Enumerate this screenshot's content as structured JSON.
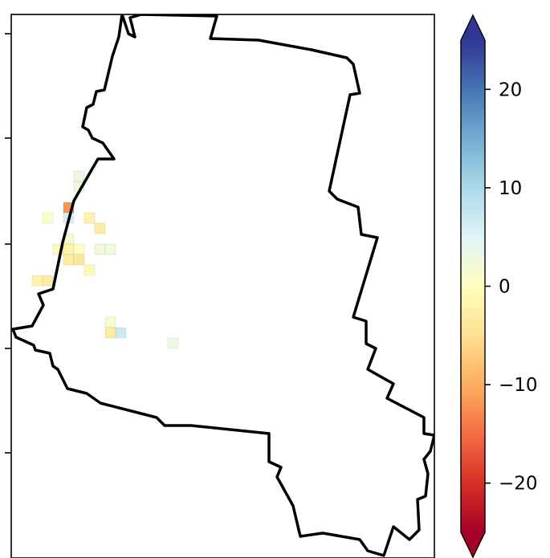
{
  "chart_data": {
    "type": "heatmap",
    "title": "",
    "xlabel": "",
    "ylabel": "",
    "colormap": "RdYlBu",
    "colorbar": {
      "vmin": -25,
      "vmax": 25,
      "extend": "both",
      "ticks": [
        20,
        10,
        0,
        -10,
        -20
      ],
      "tick_labels": [
        "20",
        "10",
        "0",
        "−10",
        "−20"
      ],
      "colors": [
        "#a50026",
        "#d73027",
        "#f46d43",
        "#fdae61",
        "#fee090",
        "#ffffbf",
        "#e0f3f8",
        "#abd9e9",
        "#74add1",
        "#4575b4",
        "#313695"
      ]
    },
    "cells": [
      {
        "col": 6,
        "row": 15,
        "value": 3
      },
      {
        "col": 6,
        "row": 16,
        "value": 3
      },
      {
        "col": 5,
        "row": 18,
        "value": -12
      },
      {
        "col": 5,
        "row": 19,
        "value": 6
      },
      {
        "col": 3,
        "row": 19,
        "value": 0.5
      },
      {
        "col": 7,
        "row": 19,
        "value": -2
      },
      {
        "col": 8,
        "row": 20,
        "value": -3
      },
      {
        "col": 5,
        "row": 21,
        "value": 1.5
      },
      {
        "col": 4,
        "row": 22,
        "value": -1
      },
      {
        "col": 5,
        "row": 22,
        "value": -2
      },
      {
        "col": 6,
        "row": 22,
        "value": 0.5
      },
      {
        "col": 8,
        "row": 22,
        "value": 2.5
      },
      {
        "col": 9,
        "row": 22,
        "value": 2.5
      },
      {
        "col": 5,
        "row": 23,
        "value": -3
      },
      {
        "col": 6,
        "row": 23,
        "value": -4
      },
      {
        "col": 7,
        "row": 24,
        "value": -1
      },
      {
        "col": 2,
        "row": 25,
        "value": -2
      },
      {
        "col": 3,
        "row": 25,
        "value": -3
      },
      {
        "col": 9,
        "row": 29,
        "value": 1.5
      },
      {
        "col": 9,
        "row": 30,
        "value": -3
      },
      {
        "col": 10,
        "row": 30,
        "value": 7
      },
      {
        "col": 15,
        "row": 31,
        "value": 3
      }
    ]
  }
}
